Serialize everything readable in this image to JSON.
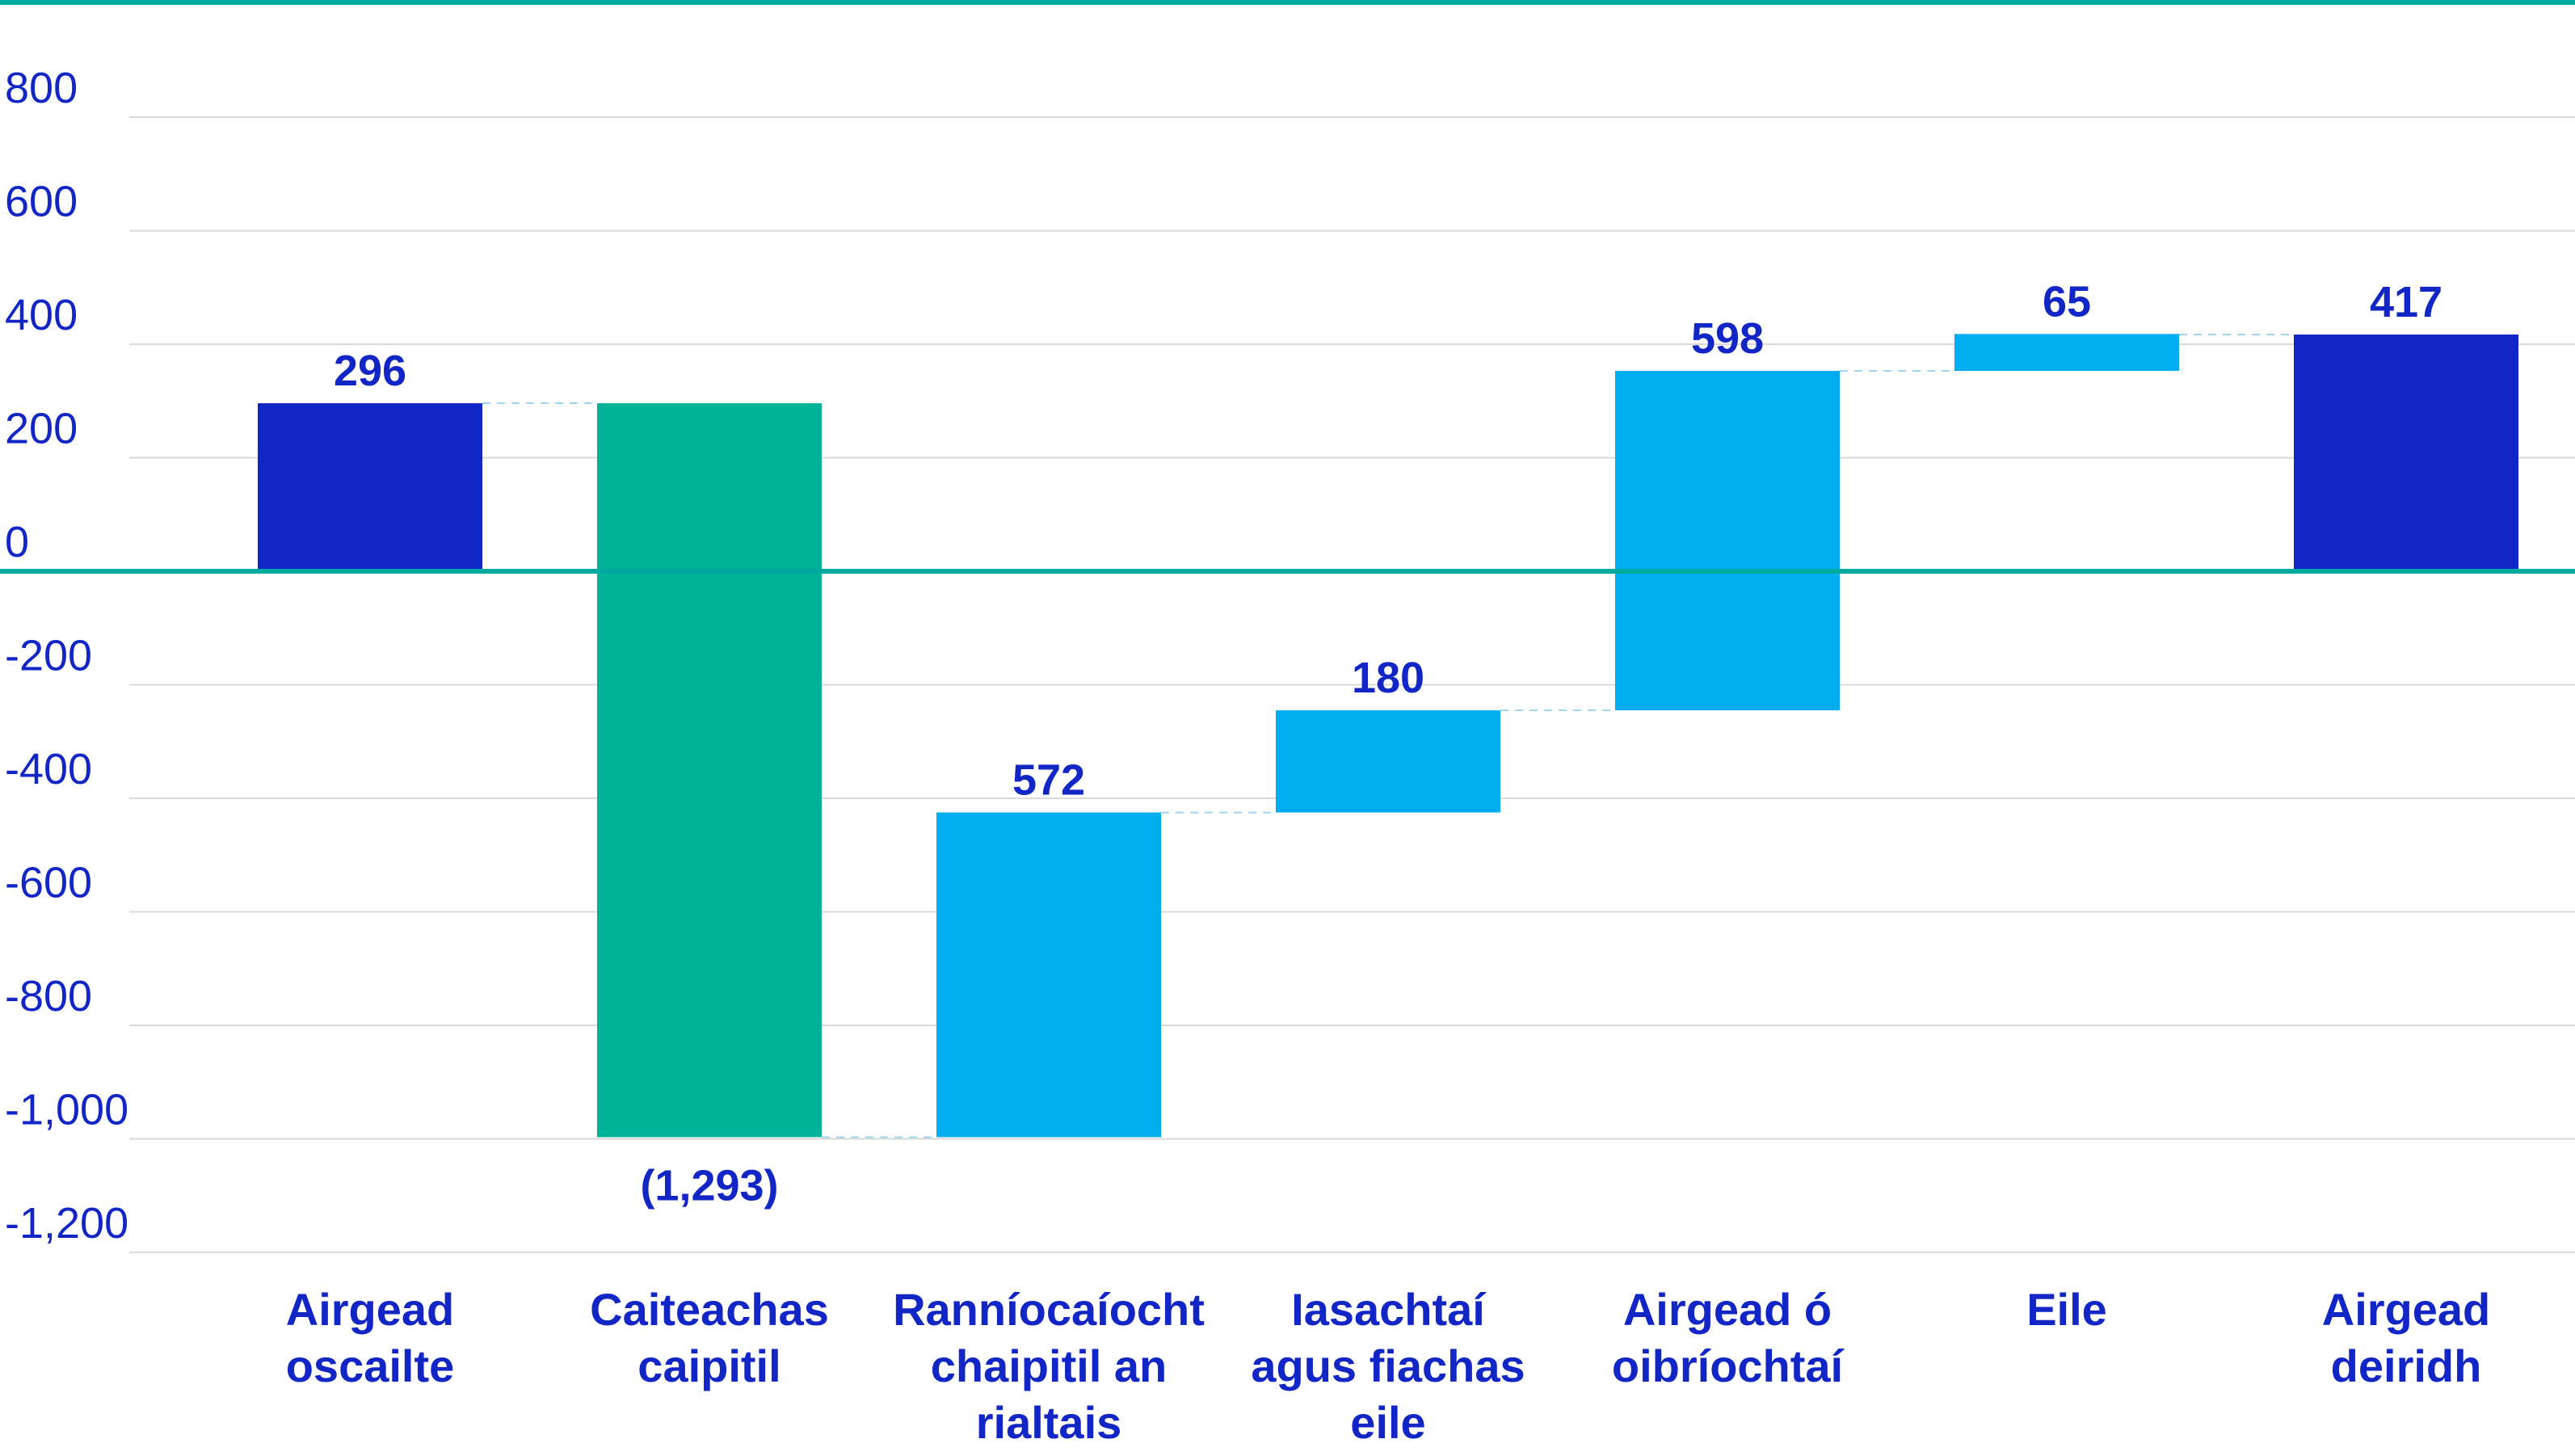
{
  "chart_data": {
    "type": "bar",
    "subtype": "waterfall",
    "ylim": [
      -1200,
      800
    ],
    "yticks": [
      800,
      600,
      400,
      200,
      0,
      -200,
      -400,
      -600,
      -800,
      -1000,
      -1200
    ],
    "ytick_labels": [
      "800",
      "600",
      "400",
      "200",
      "0",
      "-200",
      "-400",
      "-600",
      "-800",
      "-1,000",
      "-1,200"
    ],
    "grid": true,
    "legend": "none",
    "steps": [
      {
        "category": [
          "Airgead",
          "oscailte"
        ],
        "value": 296,
        "start": 0,
        "end": 296,
        "kind": "total",
        "label": "296"
      },
      {
        "category": [
          "Caiteachas",
          "caipitil"
        ],
        "value": -1293,
        "start": 296,
        "end": -997,
        "kind": "decrease",
        "label": "(1,293)"
      },
      {
        "category": [
          "Ranníocaíocht",
          "chaipitil an",
          "rialtais"
        ],
        "value": 572,
        "start": -997,
        "end": -425,
        "kind": "increase",
        "label": "572"
      },
      {
        "category": [
          "Iasachtaí",
          "agus fiachas",
          "eile"
        ],
        "value": 180,
        "start": -425,
        "end": -245,
        "kind": "increase",
        "label": "180"
      },
      {
        "category": [
          "Airgead ó",
          "oibríochtaí"
        ],
        "value": 598,
        "start": -245,
        "end": 353,
        "kind": "increase",
        "label": "598"
      },
      {
        "category": [
          "Eile"
        ],
        "value": 65,
        "start": 353,
        "end": 418,
        "kind": "increase",
        "label": "65"
      },
      {
        "category": [
          "Airgead",
          "deiridh"
        ],
        "value": 417,
        "start": 0,
        "end": 417,
        "kind": "total",
        "label": "417"
      }
    ],
    "colors": {
      "total": "#1126c4",
      "decrease": "#00b398",
      "increase": "#00aeef",
      "axis_line": "#00a99d",
      "grid": "#d9d9d9",
      "connector": "#9fd6ef",
      "text": "#1126c4"
    }
  }
}
